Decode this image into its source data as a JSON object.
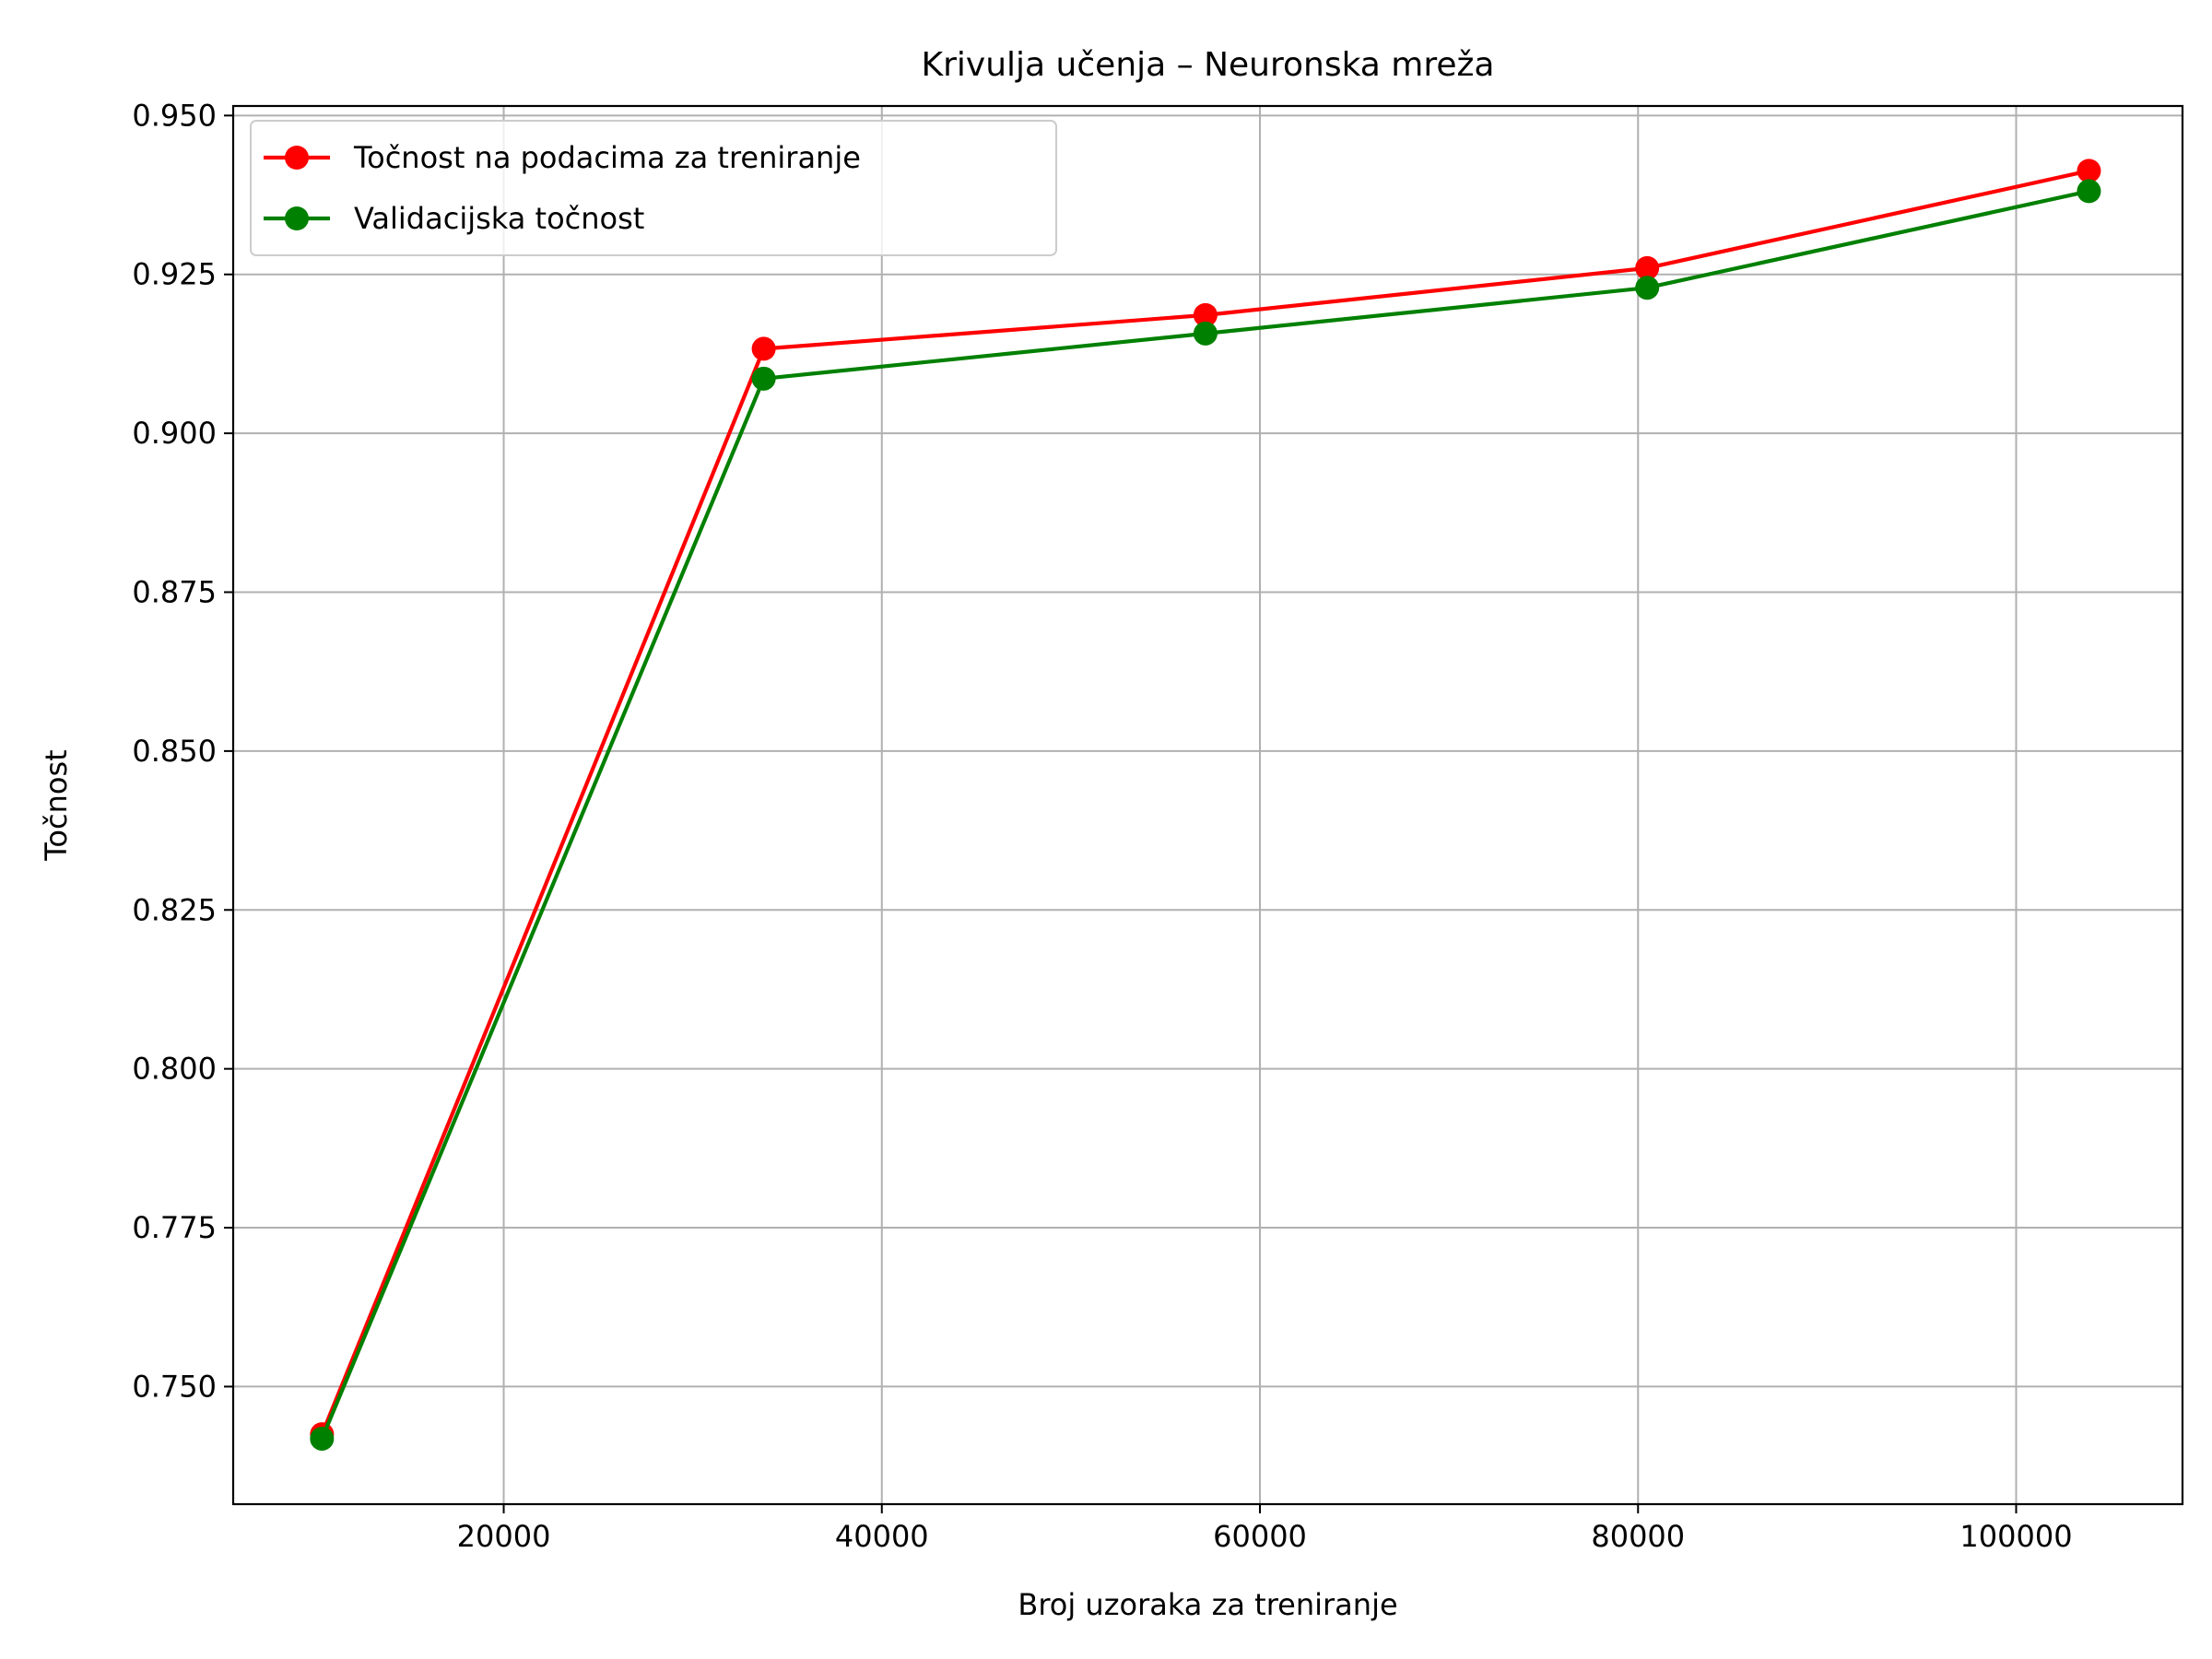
{
  "chart_data": {
    "type": "line",
    "title": "Krivulja učenja – Neuronska mreža",
    "xlabel": "Broj uzoraka za treniranje",
    "ylabel": "Točnost",
    "xlim": [
      5690,
      108800
    ],
    "ylim": [
      0.7315,
      0.9515
    ],
    "xticks": [
      20000,
      40000,
      60000,
      80000,
      100000
    ],
    "xtick_labels": [
      "20000",
      "40000",
      "60000",
      "80000",
      "100000"
    ],
    "yticks": [
      0.75,
      0.775,
      0.8,
      0.825,
      0.85,
      0.875,
      0.9,
      0.925,
      0.95
    ],
    "ytick_labels": [
      "0.750",
      "0.775",
      "0.800",
      "0.825",
      "0.850",
      "0.875",
      "0.900",
      "0.925",
      "0.950"
    ],
    "grid": true,
    "legend_position": "top-left",
    "x": [
      10386,
      33752,
      57118,
      80484,
      103850
    ],
    "series": [
      {
        "name": "Točnost na podacima za treniranje",
        "color": "#ff0000",
        "marker": "circle",
        "values": [
          0.7425,
          0.9133,
          0.9186,
          0.926,
          0.9413
        ]
      },
      {
        "name": "Validacijska točnost",
        "color": "#008000",
        "marker": "circle",
        "values": [
          0.7418,
          0.9086,
          0.9157,
          0.9229,
          0.9381
        ]
      }
    ]
  }
}
